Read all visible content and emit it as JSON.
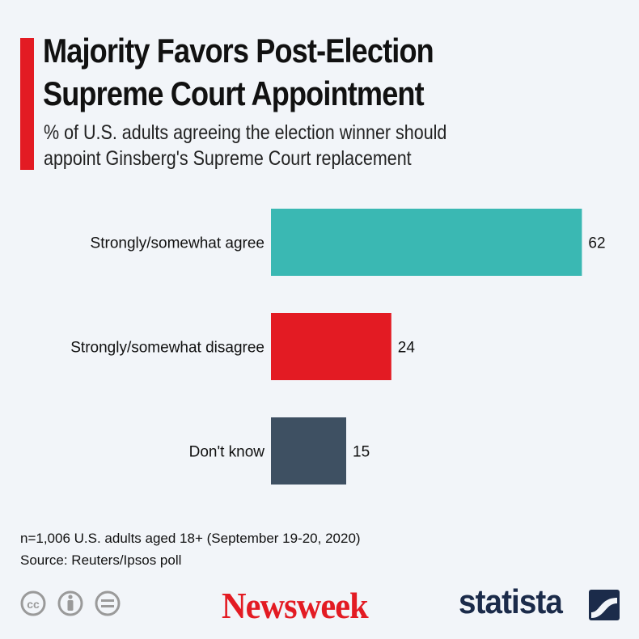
{
  "header": {
    "title_line1": "Majority Favors Post-Election",
    "title_line2": "Supreme Court Appointment",
    "subtitle_line1": "% of U.S. adults agreeing the election winner should",
    "subtitle_line2": "appoint Ginsberg's Supreme Court replacement"
  },
  "chart_data": {
    "type": "bar",
    "orientation": "horizontal",
    "categories": [
      "Strongly/somewhat agree",
      "Strongly/somewhat disagree",
      "Don't know"
    ],
    "values": [
      62,
      24,
      15
    ],
    "colors": [
      "#3ab8b3",
      "#e31b23",
      "#3e5062"
    ],
    "xlim": [
      0,
      70
    ],
    "grid": false,
    "title": "Majority Favors Post-Election Supreme Court Appointment",
    "subtitle": "% of U.S. adults agreeing the election winner should appoint Ginsberg's Supreme Court replacement"
  },
  "footer": {
    "note": "n=1,006 U.S. adults aged 18+ (September 19-20, 2020)",
    "source": "Source: Reuters/Ipsos poll",
    "license_icons": [
      "cc-icon",
      "attribution-icon",
      "no-derivatives-icon"
    ],
    "publisher": "Newsweek",
    "brand": "statista"
  },
  "colors": {
    "accent": "#e31b23",
    "background": "#f2f5f9",
    "brand_navy": "#1b2b4a"
  }
}
